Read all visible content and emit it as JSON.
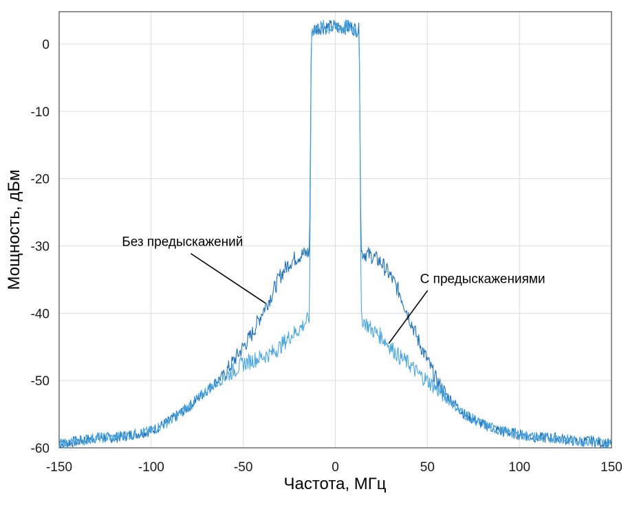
{
  "chart_data": {
    "type": "line",
    "xlabel": "Частота, МГц",
    "ylabel": "Мощность, дБм",
    "xlim": [
      -150,
      150
    ],
    "ylim": [
      -60,
      5
    ],
    "xticks": [
      -150,
      -100,
      -50,
      0,
      50,
      100,
      150
    ],
    "xtick_labels": [
      "-150",
      "-100",
      "-50",
      "0",
      "50",
      "100",
      "150"
    ],
    "yticks": [
      0,
      -10,
      -20,
      -30,
      -40,
      -50,
      -60
    ],
    "ytick_labels": [
      "0",
      "-10",
      "-20",
      "-30",
      "-40",
      "-50",
      "-60"
    ],
    "grid": true,
    "series": [
      {
        "color": "#1f6fb5",
        "points": [
          [
            -150,
            -59.5
          ],
          [
            -140,
            -59
          ],
          [
            -130,
            -58.5
          ],
          [
            -120,
            -58.5
          ],
          [
            -110,
            -58
          ],
          [
            -100,
            -57.5
          ],
          [
            -90,
            -56
          ],
          [
            -80,
            -54
          ],
          [
            -70,
            -51.5
          ],
          [
            -60,
            -49
          ],
          [
            -50,
            -45
          ],
          [
            -45,
            -43
          ],
          [
            -40,
            -40
          ],
          [
            -35,
            -37.5
          ],
          [
            -30,
            -34.5
          ],
          [
            -25,
            -32.5
          ],
          [
            -20,
            -31.5
          ],
          [
            -15,
            -31
          ],
          [
            -14,
            -31
          ],
          [
            -13,
            2
          ],
          [
            -8,
            2.5
          ],
          [
            0,
            2.5
          ],
          [
            8,
            2.5
          ],
          [
            13,
            2
          ],
          [
            14,
            -31
          ],
          [
            15,
            -31
          ],
          [
            20,
            -31.5
          ],
          [
            25,
            -32.5
          ],
          [
            30,
            -34.5
          ],
          [
            35,
            -37
          ],
          [
            40,
            -40.5
          ],
          [
            45,
            -44
          ],
          [
            50,
            -47
          ],
          [
            55,
            -50
          ],
          [
            60,
            -52
          ],
          [
            70,
            -55
          ],
          [
            80,
            -56.5
          ],
          [
            90,
            -57.5
          ],
          [
            100,
            -58
          ],
          [
            110,
            -58.5
          ],
          [
            120,
            -58.5
          ],
          [
            130,
            -59
          ],
          [
            140,
            -59
          ],
          [
            150,
            -59.5
          ]
        ]
      },
      {
        "color": "#4ba6dd",
        "points": [
          [
            -150,
            -59.5
          ],
          [
            -140,
            -59
          ],
          [
            -130,
            -58.5
          ],
          [
            -120,
            -58.5
          ],
          [
            -110,
            -58
          ],
          [
            -100,
            -57.5
          ],
          [
            -90,
            -56
          ],
          [
            -80,
            -54
          ],
          [
            -70,
            -51.5
          ],
          [
            -60,
            -49.5
          ],
          [
            -50,
            -47.5
          ],
          [
            -40,
            -46.5
          ],
          [
            -35,
            -46
          ],
          [
            -30,
            -45
          ],
          [
            -25,
            -43.5
          ],
          [
            -20,
            -42.5
          ],
          [
            -15,
            -41
          ],
          [
            -14,
            -40.5
          ],
          [
            -13,
            2
          ],
          [
            -8,
            2.5
          ],
          [
            0,
            2.5
          ],
          [
            8,
            2.5
          ],
          [
            13,
            2
          ],
          [
            14,
            -40.5
          ],
          [
            15,
            -41
          ],
          [
            20,
            -42.5
          ],
          [
            25,
            -43.5
          ],
          [
            30,
            -45
          ],
          [
            35,
            -46.5
          ],
          [
            40,
            -47.5
          ],
          [
            45,
            -49
          ],
          [
            50,
            -50
          ],
          [
            60,
            -52.5
          ],
          [
            70,
            -55
          ],
          [
            80,
            -56.5
          ],
          [
            90,
            -57.5
          ],
          [
            100,
            -58
          ],
          [
            110,
            -58.5
          ],
          [
            120,
            -58.5
          ],
          [
            130,
            -59
          ],
          [
            140,
            -59
          ],
          [
            150,
            -59.5
          ]
        ]
      }
    ],
    "annotations": [
      {
        "text": "Без предыскажений",
        "x": -83,
        "y": -30,
        "arrow_to": [
          -38,
          -38.5
        ]
      },
      {
        "text": "С предыскажениями",
        "x": 80,
        "y": -35.5,
        "arrow_to": [
          29,
          -44.5
        ]
      }
    ]
  }
}
